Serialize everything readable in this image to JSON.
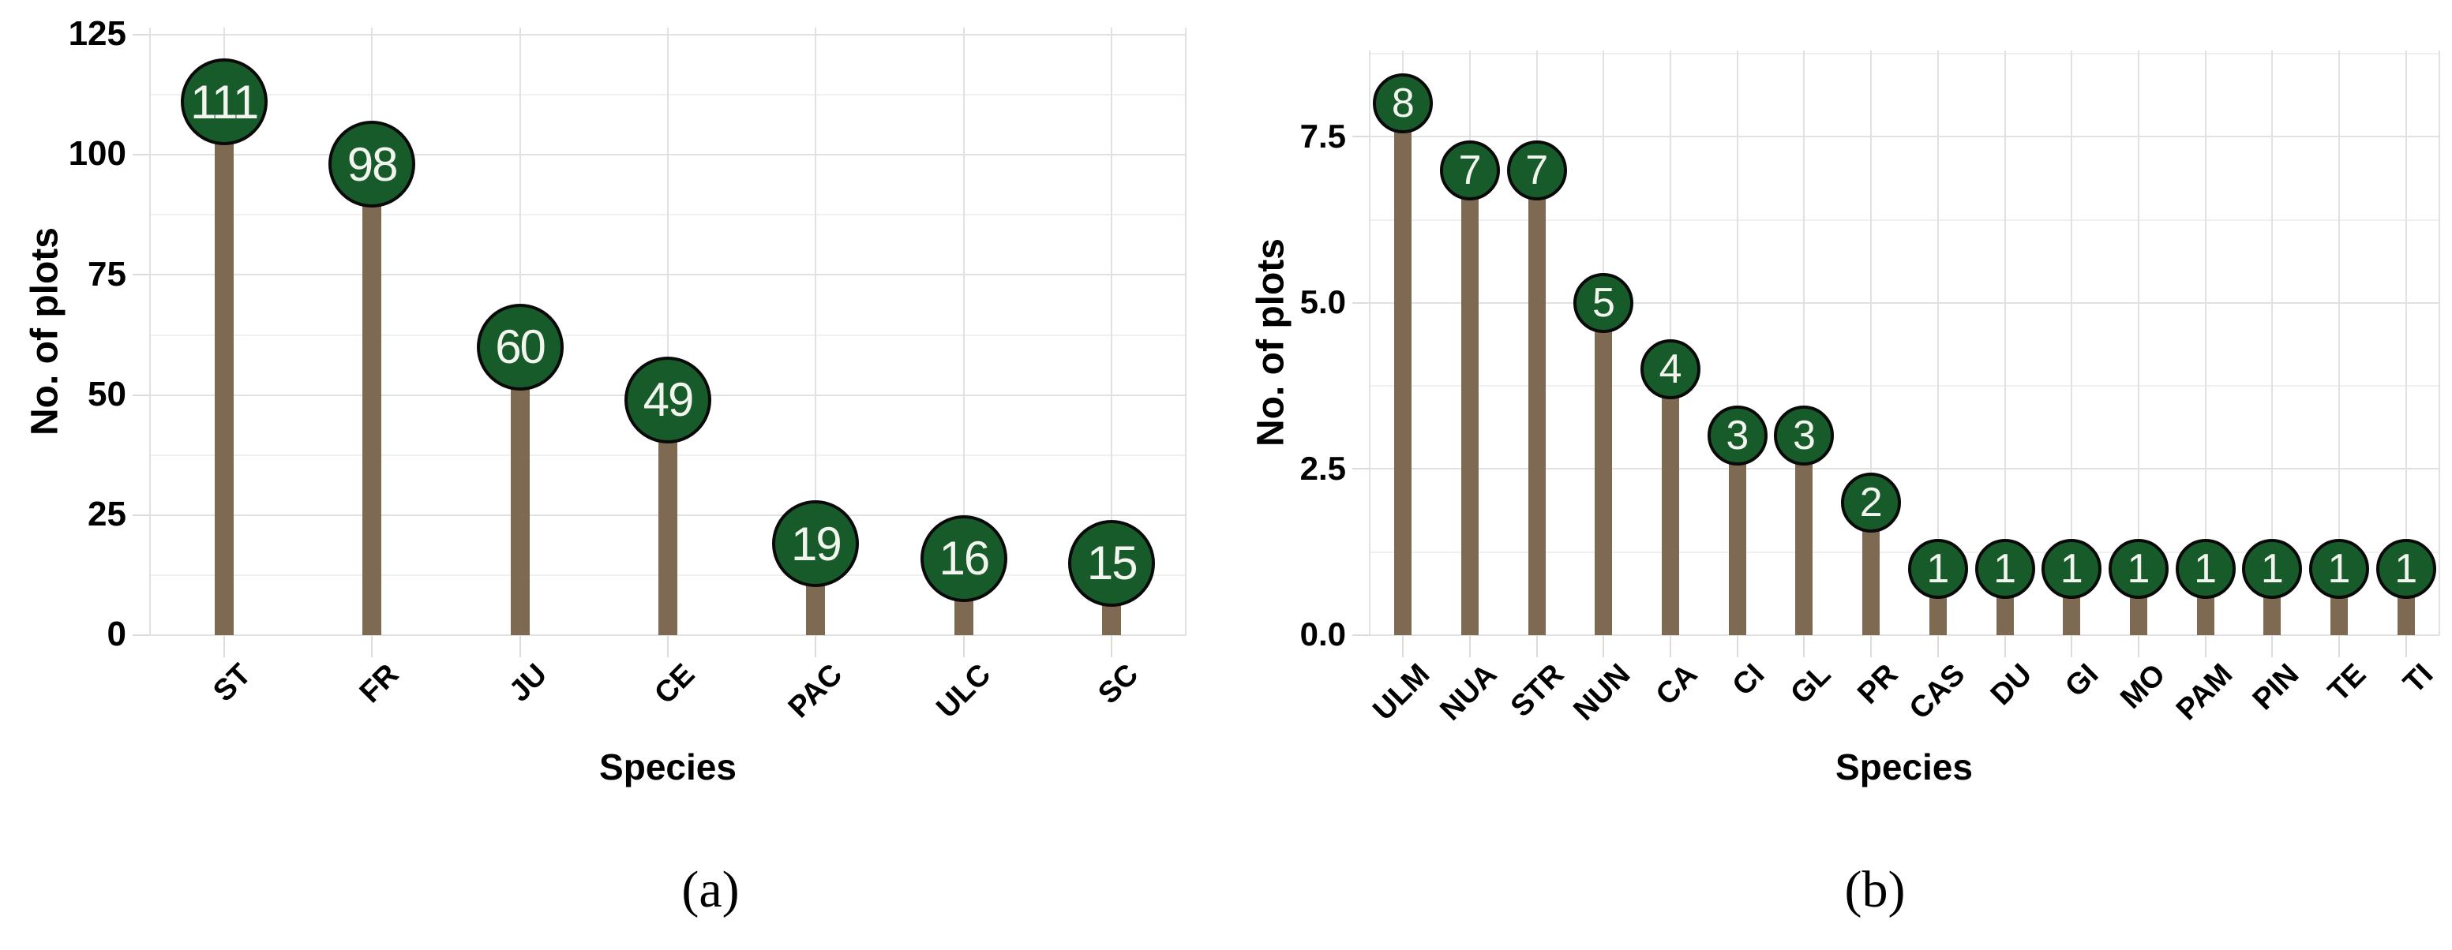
{
  "colors": {
    "marker_fill": "#185b2b",
    "marker_border": "#0a0a0a",
    "marker_text": "#f2f4ee",
    "stem": "#7e6a52",
    "grid_major": "#e1e1e1",
    "grid_minor": "#f0f0f0",
    "tick": "#dcdcdc",
    "text": "#000000",
    "background": "#ffffff"
  },
  "chart_data": [
    {
      "type": "bar",
      "variant": "lollipop",
      "panel_label": "(a)",
      "ylabel": "No. of plots",
      "xlabel": "Species",
      "categories": [
        "ST",
        "FR",
        "JU",
        "CE",
        "PAC",
        "ULC",
        "SC"
      ],
      "values": [
        111,
        98,
        60,
        49,
        19,
        16,
        15
      ],
      "yticks": [
        0,
        25,
        50,
        75,
        100,
        125
      ],
      "ytick_labels": [
        "0",
        "25",
        "50",
        "75",
        "100",
        "125"
      ],
      "ylim": [
        0,
        126.5
      ],
      "grid": "major-and-minor",
      "legend": "none"
    },
    {
      "type": "bar",
      "variant": "lollipop",
      "panel_label": "(b)",
      "ylabel": "No. of plots",
      "xlabel": "Species",
      "categories": [
        "ULM",
        "NUA",
        "STR",
        "NUN",
        "CA",
        "CI",
        "GL",
        "PR",
        "CAS",
        "DU",
        "GI",
        "MO",
        "PAM",
        "PIN",
        "TE",
        "TI"
      ],
      "values": [
        8,
        7,
        7,
        5,
        4,
        3,
        3,
        2,
        1,
        1,
        1,
        1,
        1,
        1,
        1,
        1
      ],
      "yticks": [
        0,
        2.5,
        5,
        7.5
      ],
      "ytick_labels": [
        "0.0",
        "2.5",
        "5.0",
        "7.5"
      ],
      "ylim": [
        0,
        8.8
      ],
      "grid": "major-and-minor",
      "legend": "none"
    }
  ]
}
